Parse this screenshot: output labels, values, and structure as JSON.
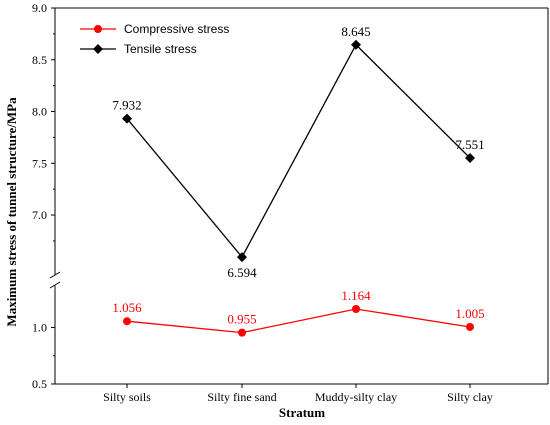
{
  "chart_data": {
    "type": "line",
    "categories": [
      "Silty soils",
      "Silty fine sand",
      "Muddy-silty clay",
      "Silty clay"
    ],
    "xlabel": "Stratum",
    "ylabel": "Maximum stress of tunnel structure/MPa",
    "y_axis_break": true,
    "upper_segment": {
      "ylim": [
        6.45,
        9.0
      ],
      "ticks": [
        "7.0",
        "7.5",
        "8.0",
        "8.5",
        "9.0"
      ]
    },
    "lower_segment": {
      "ylim": [
        0.5,
        1.35
      ],
      "ticks": [
        "0.5",
        "1.0"
      ]
    },
    "series": [
      {
        "name": "Compressive stress",
        "color": "#ff0000",
        "marker": "circle",
        "segment": "lower",
        "values": [
          1.056,
          0.955,
          1.164,
          1.005
        ],
        "labels": [
          "1.056",
          "0.955",
          "1.164",
          "1.005"
        ]
      },
      {
        "name": "Tensile stress",
        "color": "#000000",
        "marker": "diamond",
        "segment": "upper",
        "values": [
          7.932,
          6.594,
          8.645,
          7.551
        ],
        "labels": [
          "7.932",
          "6.594",
          "8.645",
          "7.551"
        ]
      }
    ],
    "legend": "top-left",
    "grid": false
  }
}
